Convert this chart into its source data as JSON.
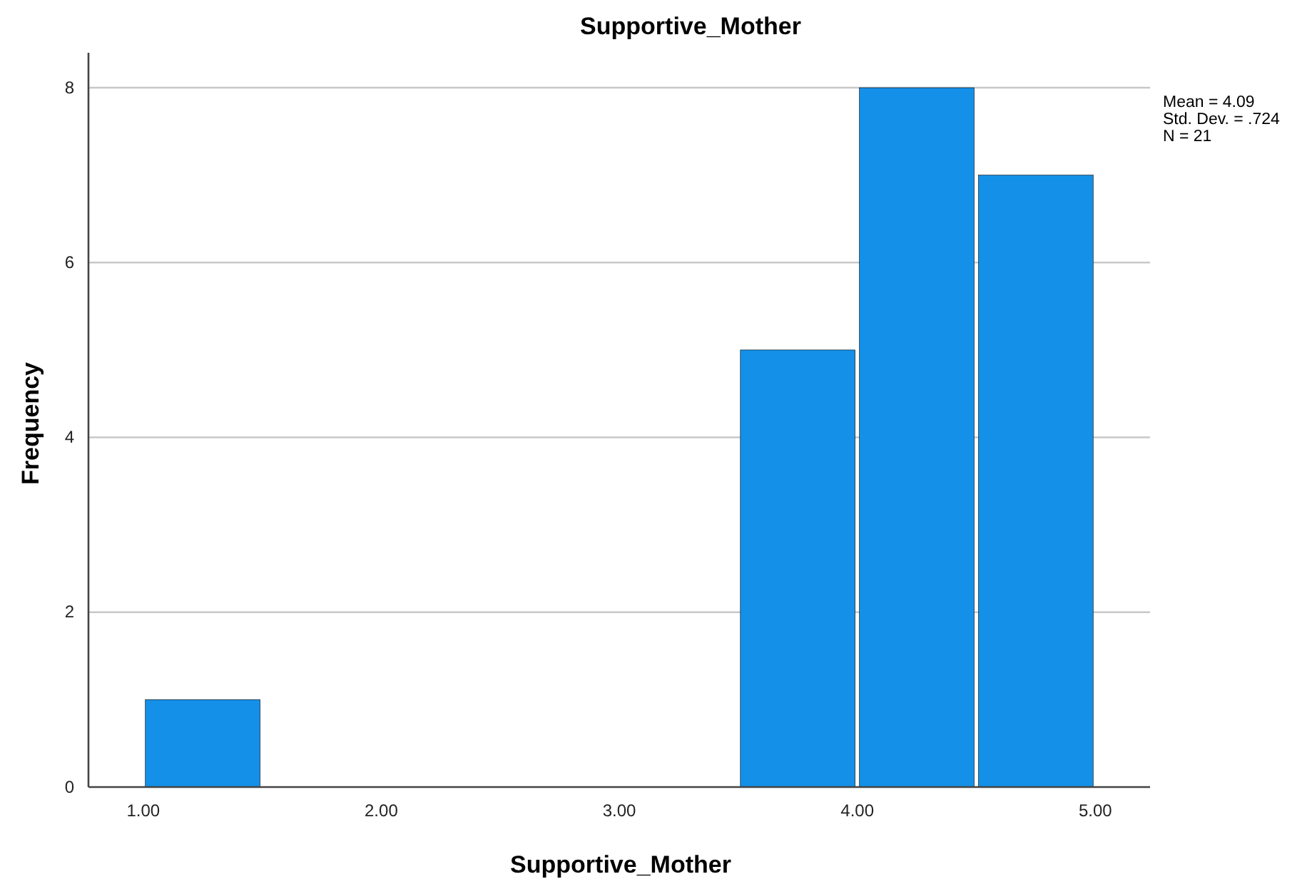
{
  "chart_data": {
    "type": "histogram",
    "title": "Supportive_Mother",
    "xlabel": "Supportive_Mother",
    "ylabel": "Frequency",
    "bins": [
      1,
      1.5,
      2,
      2.5,
      3,
      3.5,
      4,
      4.5,
      5
    ],
    "values": [
      1,
      0,
      0,
      0,
      0,
      5,
      8,
      7
    ],
    "color": "#1490e8",
    "xlim": [
      0.77,
      5.23
    ],
    "xticks": [
      {
        "value": 1,
        "label": "1.00"
      },
      {
        "value": 2,
        "label": "2.00"
      },
      {
        "value": 3,
        "label": "3.00"
      },
      {
        "value": 4,
        "label": "4.00"
      },
      {
        "value": 5,
        "label": "5.00"
      }
    ],
    "ylim": [
      0,
      8.4
    ],
    "yticks": [
      0,
      2,
      4,
      6,
      8
    ],
    "grid": "y",
    "annotations": [
      "Mean = 4.09",
      "Std. Dev. = .724",
      "N = 21"
    ]
  }
}
